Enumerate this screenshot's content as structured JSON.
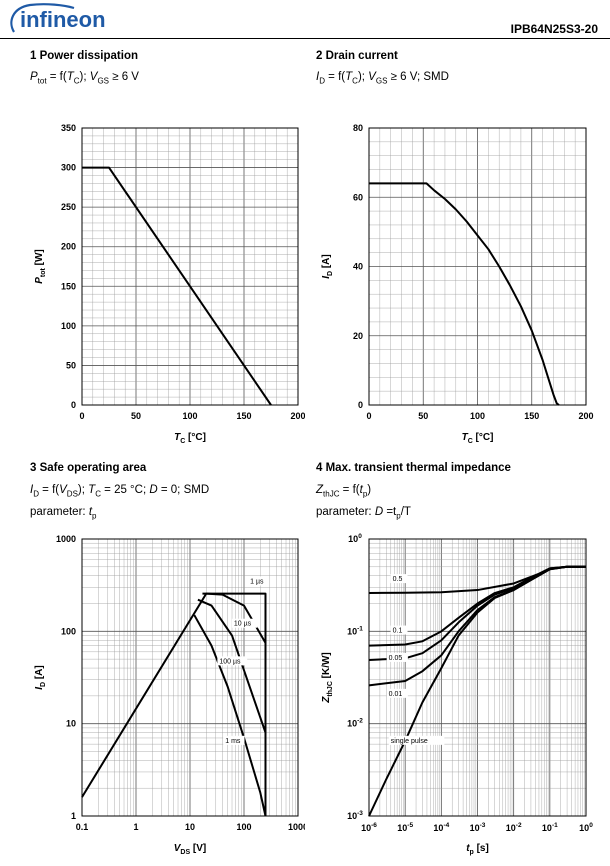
{
  "header": {
    "brand": "infineon",
    "part_number": "IPB64N25S3-20"
  },
  "colors": {
    "brand": "#1f5aa6",
    "line": "#000000",
    "grid": "#9a9a9a"
  },
  "chart_data": [
    {
      "id": "c1",
      "type": "line",
      "title": "1 Power dissipation",
      "subtitle_parts": [
        "P",
        "tot",
        " = f(",
        "T",
        "C",
        "); ",
        "V",
        "GS",
        " ≥ 6 V"
      ],
      "xlabel_main": "T",
      "xlabel_sub": "C",
      "xlabel_unit": " [°C]",
      "ylabel_main": "P",
      "ylabel_sub": "tot",
      "ylabel_unit": " [W]",
      "xlim": [
        0,
        200
      ],
      "ylim": [
        0,
        350
      ],
      "xticks": [
        0,
        50,
        100,
        150,
        200
      ],
      "yticks": [
        0,
        50,
        100,
        150,
        200,
        250,
        300,
        350
      ],
      "series": [
        {
          "name": "Ptot",
          "x": [
            0,
            25,
            175
          ],
          "y": [
            300,
            300,
            0
          ]
        }
      ]
    },
    {
      "id": "c2",
      "type": "line",
      "title": "2 Drain current",
      "subtitle_parts": [
        "I",
        "D",
        " = f(",
        "T",
        "C",
        "); ",
        "V",
        "GS",
        " ≥ 6 V; SMD"
      ],
      "xlabel_main": "T",
      "xlabel_sub": "C",
      "xlabel_unit": " [°C]",
      "ylabel_main": "I",
      "ylabel_sub": "D",
      "ylabel_unit": " [A]",
      "xlim": [
        0,
        200
      ],
      "ylim": [
        0,
        80
      ],
      "xticks": [
        0,
        50,
        100,
        150,
        200
      ],
      "yticks": [
        0,
        20,
        40,
        60,
        80
      ],
      "series": [
        {
          "name": "ID",
          "x": [
            0,
            53,
            60,
            70,
            80,
            90,
            100,
            110,
            120,
            130,
            140,
            150,
            160,
            165,
            170,
            173,
            175
          ],
          "y": [
            64,
            64,
            62,
            59.5,
            56.5,
            53,
            49,
            45,
            40,
            34.5,
            28.5,
            21.5,
            13,
            8,
            3,
            0.5,
            0
          ]
        }
      ]
    },
    {
      "id": "c3",
      "type": "line",
      "title": "3 Safe operating area",
      "subtitle_parts": [
        "I",
        "D",
        " = f(",
        "V",
        "DS",
        "); ",
        "T",
        "C",
        " = 25 °C; ",
        "D",
        "",
        " = 0; SMD"
      ],
      "param_prefix": "parameter: ",
      "param_main": "t",
      "param_sub": "p",
      "xlabel_main": "V",
      "xlabel_sub": "DS",
      "xlabel_unit": " [V]",
      "ylabel_main": "I",
      "ylabel_sub": "D",
      "ylabel_unit": " [A]",
      "xscale": "log",
      "yscale": "log",
      "xlim": [
        0.1,
        1000
      ],
      "ylim": [
        1,
        1000
      ],
      "xticks": [
        0.1,
        1,
        10,
        100,
        1000
      ],
      "xticklabels": [
        "0.1",
        "1",
        "10",
        "100",
        "1000"
      ],
      "yticks": [
        1,
        10,
        100,
        1000
      ],
      "yticklabels": [
        "1",
        "10",
        "100",
        "1000"
      ],
      "series": [
        {
          "name": "1 µs",
          "x": [
            0.1,
            20,
            250,
            250
          ],
          "y": [
            1.6,
            256,
            256,
            1
          ]
        },
        {
          "name": "10 µs",
          "x": [
            17,
            20,
            40,
            100,
            250
          ],
          "y": [
            256,
            256,
            250,
            190,
            75
          ]
        },
        {
          "name": "100 µs",
          "x": [
            14,
            25,
            60,
            250
          ],
          "y": [
            220,
            190,
            90,
            8
          ]
        },
        {
          "name": "1 ms",
          "x": [
            12,
            25,
            50,
            100,
            200,
            250
          ],
          "y": [
            150,
            70,
            25,
            7,
            1.8,
            1
          ]
        }
      ],
      "annotations": [
        {
          "text": "1 µs",
          "x": 130,
          "y": 330
        },
        {
          "text": "10 µs",
          "x": 65,
          "y": 115
        },
        {
          "text": "100 µs",
          "x": 35,
          "y": 45
        },
        {
          "text": "1 ms",
          "x": 45,
          "y": 6.2
        }
      ]
    },
    {
      "id": "c4",
      "type": "line",
      "title": "4 Max. transient thermal impedance",
      "subtitle_parts": [
        "Z",
        "thJC",
        " = f(",
        "t",
        "p",
        ")"
      ],
      "param_prefix": "parameter: ",
      "param_main": "D",
      "param_sub": "",
      "param_suffix": " =t",
      "param_suffix_sub": "p",
      "param_suffix_end": "/T",
      "xlabel_main": "t",
      "xlabel_sub": "p",
      "xlabel_unit": " [s]",
      "ylabel_main": "Z",
      "ylabel_sub": "thJC",
      "ylabel_unit": " [K/W]",
      "xscale": "log",
      "yscale": "log",
      "xlim": [
        1e-06,
        1
      ],
      "ylim": [
        0.001,
        1
      ],
      "xticks": [
        1e-06,
        1e-05,
        0.0001,
        0.001,
        0.01,
        0.1,
        1
      ],
      "xticklabels": [
        [
          "10",
          "-6"
        ],
        [
          "10",
          "-5"
        ],
        [
          "10",
          "-4"
        ],
        [
          "10",
          "-3"
        ],
        [
          "10",
          "-2"
        ],
        [
          "10",
          "-1"
        ],
        [
          "10",
          "0"
        ]
      ],
      "yticks": [
        0.001,
        0.01,
        0.1,
        1
      ],
      "yticklabels": [
        [
          "10",
          "-3"
        ],
        [
          "10",
          "-2"
        ],
        [
          "10",
          "-1"
        ],
        [
          "10",
          "0"
        ]
      ],
      "series": [
        {
          "name": "0.5",
          "x": [
            1e-06,
            1e-05,
            0.0001,
            0.001,
            0.01,
            0.05,
            0.1,
            0.3,
            1
          ],
          "y": [
            0.26,
            0.262,
            0.265,
            0.28,
            0.33,
            0.42,
            0.48,
            0.5,
            0.5
          ]
        },
        {
          "name": "0.1",
          "x": [
            1e-06,
            1e-05,
            3e-05,
            0.0001,
            0.0003,
            0.001,
            0.003,
            0.01,
            0.03,
            0.1,
            0.3,
            1
          ],
          "y": [
            0.07,
            0.072,
            0.078,
            0.1,
            0.14,
            0.2,
            0.26,
            0.3,
            0.38,
            0.48,
            0.5,
            0.5
          ]
        },
        {
          "name": "0.05",
          "x": [
            1e-06,
            1e-05,
            3e-05,
            0.0001,
            0.0003,
            0.001,
            0.003,
            0.01,
            0.03,
            0.1,
            0.3,
            1
          ],
          "y": [
            0.049,
            0.051,
            0.058,
            0.08,
            0.125,
            0.19,
            0.25,
            0.29,
            0.37,
            0.475,
            0.5,
            0.5
          ]
        },
        {
          "name": "0.01",
          "x": [
            1e-06,
            1e-05,
            3e-05,
            0.0001,
            0.0003,
            0.001,
            0.003,
            0.01,
            0.03,
            0.1,
            0.3,
            1
          ],
          "y": [
            0.026,
            0.029,
            0.037,
            0.055,
            0.1,
            0.17,
            0.235,
            0.28,
            0.36,
            0.47,
            0.5,
            0.5
          ]
        },
        {
          "name": "single pulse",
          "x": [
            1e-06,
            3e-06,
            1e-05,
            3e-05,
            0.0001,
            0.0003,
            0.001,
            0.003,
            0.01,
            0.03,
            0.1,
            0.3,
            1
          ],
          "y": [
            0.001,
            0.0025,
            0.0065,
            0.017,
            0.04,
            0.09,
            0.16,
            0.23,
            0.28,
            0.36,
            0.47,
            0.5,
            0.5
          ]
        }
      ],
      "annotations": [
        {
          "text": "0.5",
          "x": 4.5e-06,
          "y": 0.35
        },
        {
          "text": "0.1",
          "x": 4.5e-06,
          "y": 0.097
        },
        {
          "text": "0.05",
          "x": 3.5e-06,
          "y": 0.049
        },
        {
          "text": "0.01",
          "x": 3.5e-06,
          "y": 0.02
        },
        {
          "text": "single pulse",
          "x": 4e-06,
          "y": 0.0062
        }
      ]
    }
  ]
}
